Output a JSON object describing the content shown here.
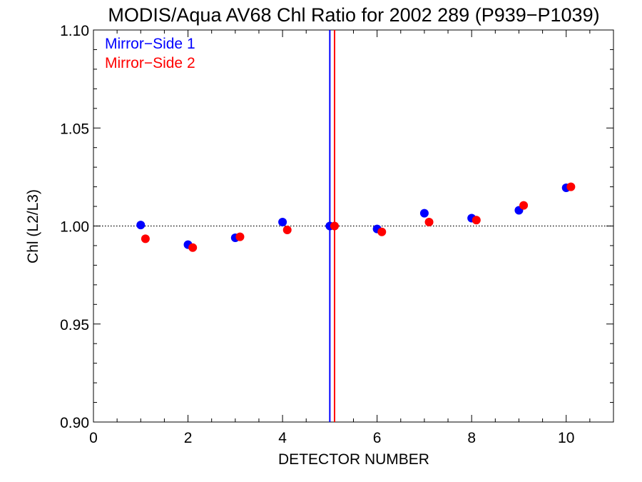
{
  "chart_data": {
    "type": "scatter",
    "title": "MODIS/Aqua AV68 Chl Ratio for 2002 289 (P939−P1039)",
    "xlabel": "DETECTOR NUMBER",
    "ylabel": "Chl (L2/L3)",
    "xlim": [
      0,
      11
    ],
    "ylim": [
      0.9,
      1.1
    ],
    "x_ticks": [
      0,
      2,
      4,
      6,
      8,
      10
    ],
    "x_tick_labels": [
      "0",
      "2",
      "4",
      "6",
      "8",
      "10"
    ],
    "y_ticks": [
      0.9,
      0.95,
      1.0,
      1.05,
      1.1
    ],
    "y_tick_labels": [
      "0.90",
      "0.95",
      "1.00",
      "1.05",
      "1.10"
    ],
    "reference_line_y": 1.0,
    "legend_position": "top-left",
    "series": [
      {
        "name": "Mirror−Side 1",
        "color": "#0000ff",
        "x": [
          1,
          2,
          3,
          4,
          5,
          6,
          7,
          8,
          9,
          10
        ],
        "y": [
          1.0005,
          0.9905,
          0.994,
          1.002,
          1.0,
          0.9985,
          1.0065,
          1.004,
          1.008,
          1.0195
        ],
        "vertical_line_x": 5.0
      },
      {
        "name": "Mirror−Side 2",
        "color": "#ff0000",
        "x": [
          1.1,
          2.1,
          3.1,
          4.1,
          5.1,
          6.1,
          7.1,
          8.1,
          9.1,
          10.1
        ],
        "y": [
          0.9935,
          0.989,
          0.9945,
          0.998,
          1.0,
          0.997,
          1.002,
          1.003,
          1.0105,
          1.02
        ],
        "vertical_line_x": 5.1
      }
    ]
  }
}
